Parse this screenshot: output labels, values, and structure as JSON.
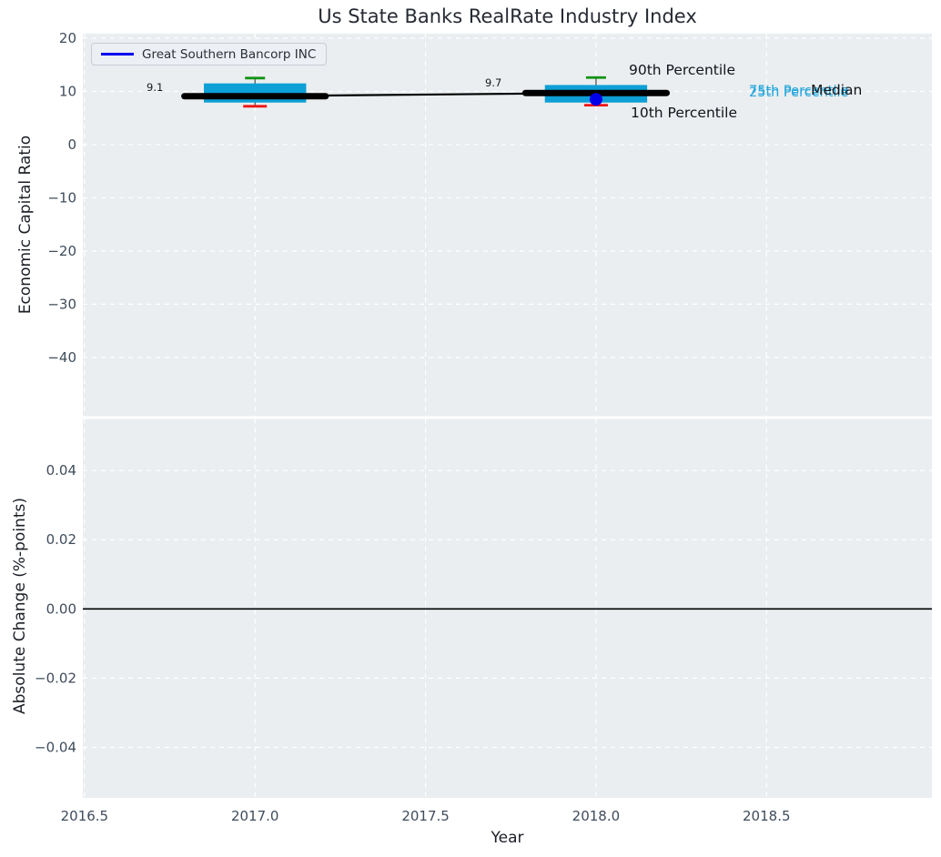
{
  "figure": {
    "title": "Us State Banks RealRate Industry Index",
    "background": "#ffffff",
    "panel_background": "#eaeef0",
    "gridline_color": "#ffffff"
  },
  "legend": {
    "label": "Great Southern Bancorp INC",
    "line_color": "#0000ee"
  },
  "chart_data": {
    "type": "box",
    "title": "Us State Banks RealRate Industry Index",
    "xlabel": "Year",
    "xlim": [
      2016.495,
      2018.985
    ],
    "x_tick_values": [
      2016.5,
      2017.0,
      2017.5,
      2018.0,
      2018.5
    ],
    "x_tick_labels": [
      "2016.5",
      "2017.0",
      "2017.5",
      "2018.0",
      "2018.5"
    ],
    "grid": "dashed-white-on-gray",
    "legend_position": "upper-left",
    "panels": [
      {
        "name": "economic_capital_ratio",
        "ylabel": "Economic Capital Ratio",
        "ylim": [
          -51.05,
          20.85
        ],
        "y_tick_values": [
          20,
          10,
          0,
          -10,
          -20,
          -30,
          -40
        ],
        "y_tick_labels": [
          "20",
          "10",
          "0",
          "−10",
          "−20",
          "−30",
          "−40"
        ],
        "series_name": "Great Southern Bancorp INC",
        "boxes": [
          {
            "year": 2017,
            "median": 9.1,
            "median_label": "9.1",
            "q1": 7.9,
            "q3": 11.5,
            "p10": 7.2,
            "p90": 12.5
          },
          {
            "year": 2018,
            "median": 9.7,
            "median_label": "9.7",
            "q1": 7.9,
            "q3": 11.2,
            "p10": 7.4,
            "p90": 12.6,
            "company_value": 8.5
          }
        ],
        "company_points": [
          {
            "year": 2018,
            "value": 8.5
          }
        ]
      },
      {
        "name": "absolute_change",
        "ylabel": "Absolute Change (%-points)",
        "ylim": [
          -0.0546,
          0.0549
        ],
        "y_tick_values": [
          0.04,
          0.02,
          0.0,
          -0.02,
          -0.04
        ],
        "y_tick_labels": [
          "0.04",
          "0.02",
          "0.00",
          "−0.02",
          "−0.04"
        ],
        "zero_line": 0.0
      }
    ],
    "annotations": {
      "p90": "90th Percentile",
      "p10": "10th Percentile",
      "p75": "75th Percentile",
      "p25": "25th Percentile",
      "median": "Median"
    },
    "colors": {
      "box_fill": "#0d9fd6",
      "percentile_text": "#27a7db",
      "p90_cap": "#119311",
      "p10_cap": "#ed1515",
      "median_line": "#000000",
      "company_marker": "#0202e8",
      "zero_line": "#000000",
      "tick_label": "#3f4c5b"
    }
  }
}
